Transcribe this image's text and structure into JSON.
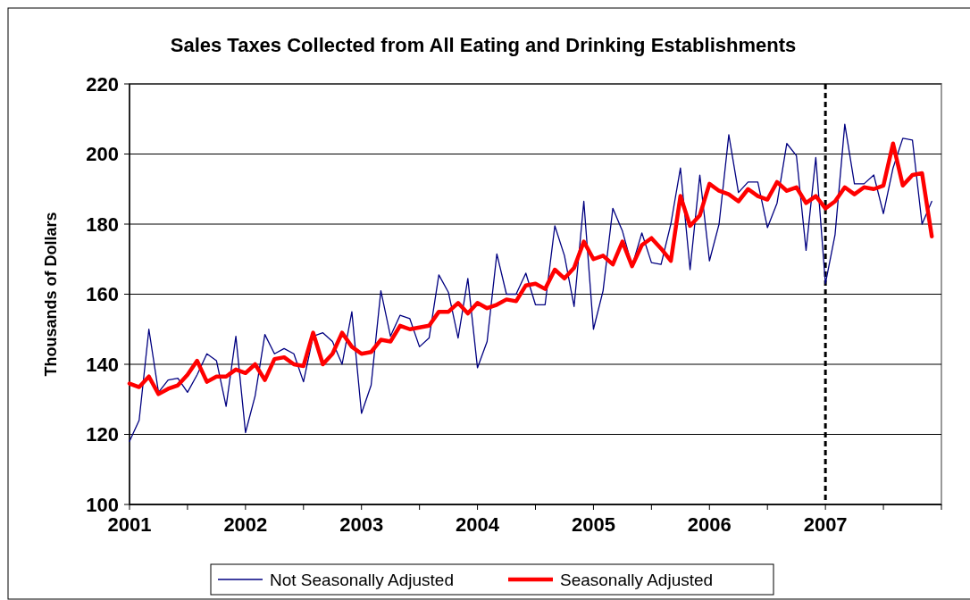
{
  "chart_data": {
    "type": "line",
    "title": "Sales Taxes Collected from All Eating and Drinking Establishments",
    "ylabel": "Thousands of Dollars",
    "x": [
      2001,
      2001.083,
      2001.167,
      2001.25,
      2001.333,
      2001.417,
      2001.5,
      2001.583,
      2001.667,
      2001.75,
      2001.833,
      2001.917,
      2002,
      2002.083,
      2002.167,
      2002.25,
      2002.333,
      2002.417,
      2002.5,
      2002.583,
      2002.667,
      2002.75,
      2002.833,
      2002.917,
      2003,
      2003.083,
      2003.167,
      2003.25,
      2003.333,
      2003.417,
      2003.5,
      2003.583,
      2003.667,
      2003.75,
      2003.833,
      2003.917,
      2004,
      2004.083,
      2004.167,
      2004.25,
      2004.333,
      2004.417,
      2004.5,
      2004.583,
      2004.667,
      2004.75,
      2004.833,
      2004.917,
      2005,
      2005.083,
      2005.167,
      2005.25,
      2005.333,
      2005.417,
      2005.5,
      2005.583,
      2005.667,
      2005.75,
      2005.833,
      2005.917,
      2006,
      2006.083,
      2006.167,
      2006.25,
      2006.333,
      2006.417,
      2006.5,
      2006.583,
      2006.667,
      2006.75,
      2006.833,
      2006.917,
      2007,
      2007.083,
      2007.167,
      2007.25,
      2007.333,
      2007.417,
      2007.5,
      2007.583,
      2007.667,
      2007.75,
      2007.833,
      2007.917
    ],
    "series": [
      {
        "name": "Not Seasonally Adjusted",
        "color": "#000080",
        "values": [
          118,
          124,
          150,
          132,
          135.5,
          136,
          132,
          137,
          143,
          141,
          128,
          148,
          120.5,
          131,
          148.5,
          143,
          144.5,
          143,
          135,
          148,
          149,
          146.5,
          140,
          155,
          126,
          134,
          161,
          148,
          154,
          153,
          145,
          147.5,
          165.5,
          160.5,
          147.5,
          164.5,
          139,
          146.5,
          171.5,
          160,
          160,
          166,
          157,
          157,
          179.5,
          171,
          156.5,
          186.5,
          150,
          161,
          184.5,
          178,
          168,
          177.5,
          169,
          168.5,
          180,
          196,
          167,
          194,
          169.5,
          180,
          205.5,
          189,
          192,
          192,
          179,
          186,
          203,
          199.5,
          172.5,
          199,
          163,
          177,
          208.5,
          191.5,
          191.5,
          194,
          183,
          196,
          204.5,
          204,
          180,
          186.5
        ]
      },
      {
        "name": "Seasonally Adjusted",
        "color": "#ff0000",
        "values": [
          134.5,
          133.5,
          136.5,
          131.5,
          133,
          134,
          137,
          141,
          135,
          136.5,
          136.5,
          138.5,
          137.5,
          140,
          135.5,
          141.5,
          142,
          140,
          139.5,
          149,
          140,
          143,
          149,
          145,
          143,
          143.5,
          147,
          146.5,
          151,
          150,
          150.5,
          151,
          155,
          155,
          157.5,
          154.5,
          157.5,
          156,
          157,
          158.5,
          158,
          162.5,
          163,
          161.5,
          167,
          164.5,
          167.5,
          175,
          170,
          171,
          168.5,
          175,
          168,
          174,
          176,
          173,
          169.5,
          188,
          179.5,
          182.5,
          191.5,
          189.5,
          188.5,
          186.5,
          190,
          188,
          187,
          192,
          189.5,
          190.5,
          186,
          188,
          184.5,
          186.5,
          190.5,
          188.5,
          190.5,
          190,
          191,
          203,
          191,
          194,
          194.5,
          176.5
        ]
      }
    ],
    "xlim": [
      2001,
      2008
    ],
    "xticks": [
      2001,
      2002,
      2003,
      2004,
      2005,
      2006,
      2007
    ],
    "ylim": [
      100,
      220
    ],
    "yticks": [
      100,
      120,
      140,
      160,
      180,
      200,
      220
    ],
    "grid": "y",
    "legend": "bottom",
    "ref_lines": [
      {
        "axis": "x",
        "value": 2007,
        "color": "#000000",
        "line_style": "dashed"
      }
    ]
  }
}
